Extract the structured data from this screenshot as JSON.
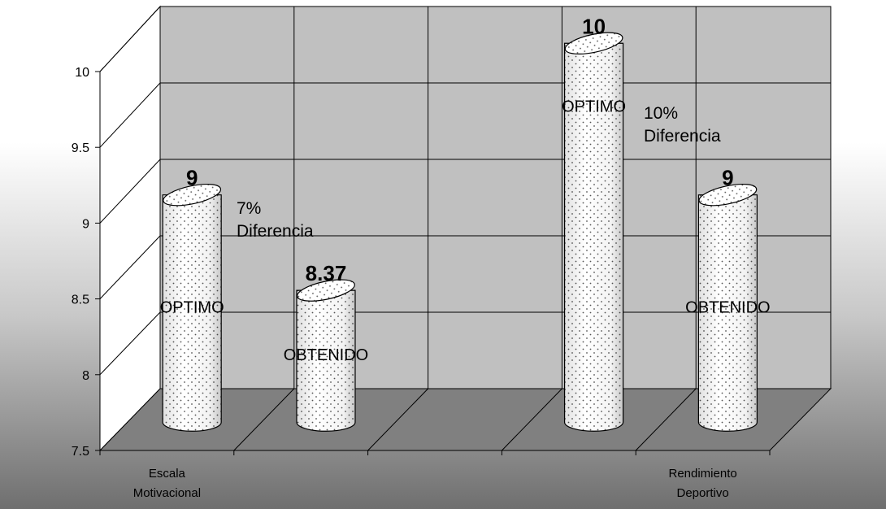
{
  "chart_data": {
    "type": "bar",
    "style": "3d-cylinder",
    "ylim": [
      7.5,
      10
    ],
    "yticks": [
      "7.5",
      "8",
      "8.5",
      "9",
      "9.5",
      "10"
    ],
    "grid": true,
    "categories": [
      "Escala\nMotivacional",
      "Rendimiento\nDeportivo"
    ],
    "bars": [
      {
        "value": 9,
        "value_label": "9",
        "inner_label": "OPTIMO"
      },
      {
        "value": 8.37,
        "value_label": "8.37",
        "inner_label": "OBTENIDO"
      },
      {
        "value": 10,
        "value_label": "10",
        "inner_label": "OPTIMO"
      },
      {
        "value": 9,
        "value_label": "9",
        "inner_label": "OBTENIDO"
      }
    ],
    "annotations": [
      "7%\nDiferencia",
      "10%\nDiferencia"
    ],
    "colors": {
      "bar_fill": "#ffffff",
      "dots": "#555555",
      "back_wall": "#c0c0c0",
      "floor": "#808080"
    }
  }
}
